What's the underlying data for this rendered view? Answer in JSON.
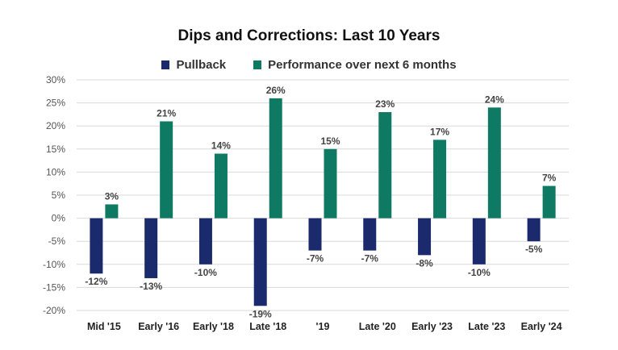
{
  "colors": {
    "pullback": "#1a2a6c",
    "performance": "#0f7a64",
    "grid": "#d9d9d9",
    "axis_text": "#555555"
  },
  "chart_data": {
    "type": "bar",
    "title": "Dips and Corrections: Last 10 Years",
    "categories": [
      "Mid '15",
      "Early '16",
      "Early '18",
      "Late '18",
      "'19",
      "Late '20",
      "Early '23",
      "Late '23",
      "Early '24"
    ],
    "series": [
      {
        "name": "Pullback",
        "values": [
          -12,
          -13,
          -10,
          -19,
          -7,
          -7,
          -8,
          -10,
          -5
        ],
        "labels": [
          "-12%",
          "-13%",
          "-10%",
          "-19%",
          "-7%",
          "-7%",
          "-8%",
          "-10%",
          "-5%"
        ]
      },
      {
        "name": "Performance over next 6 months",
        "values": [
          3,
          21,
          14,
          26,
          15,
          23,
          17,
          24,
          7
        ],
        "labels": [
          "3%",
          "21%",
          "14%",
          "26%",
          "15%",
          "23%",
          "17%",
          "24%",
          "7%"
        ]
      }
    ],
    "ylim": [
      -20,
      30
    ],
    "yticks": [
      "30%",
      "25%",
      "20%",
      "15%",
      "10%",
      "5%",
      "0%",
      "-5%",
      "-10%",
      "-15%",
      "-20%"
    ],
    "ytick_values": [
      30,
      25,
      20,
      15,
      10,
      5,
      0,
      -5,
      -10,
      -15,
      -20
    ],
    "grid": true,
    "legend": "top"
  }
}
